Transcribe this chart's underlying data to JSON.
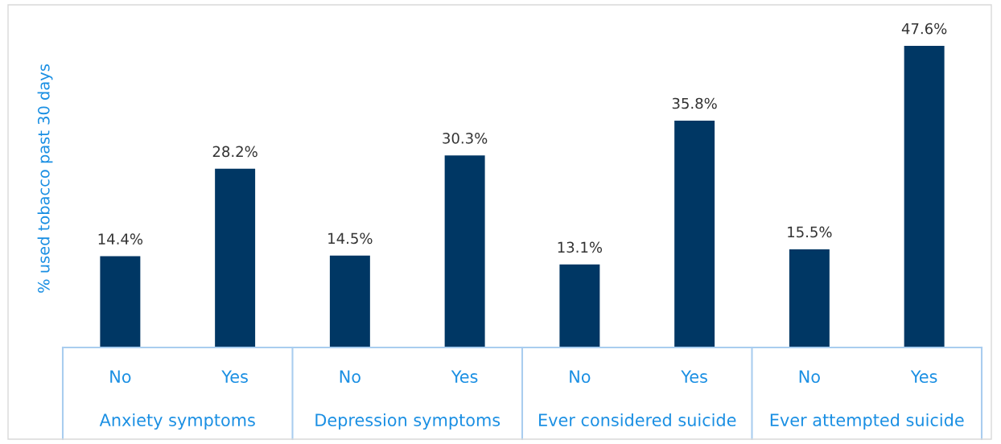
{
  "chart_data": {
    "type": "bar",
    "ylabel": "% used tobacco past 30 days",
    "categories": [
      "No",
      "Yes",
      "No",
      "Yes",
      "No",
      "Yes",
      "No",
      "Yes"
    ],
    "values": [
      14.4,
      28.2,
      14.5,
      30.3,
      13.1,
      35.8,
      15.5,
      47.6
    ],
    "color": "#003764",
    "value_labels": [
      "14.4%",
      "28.2%",
      "14.5%",
      "30.3%",
      "13.1%",
      "35.8%",
      "15.5%",
      "47.6%"
    ],
    "annotations": [
      "Anxiety symptoms",
      "Depression symptoms",
      "Ever considered suicide",
      "Ever attempted suicide"
    ],
    "grid": false,
    "legend": false
  }
}
